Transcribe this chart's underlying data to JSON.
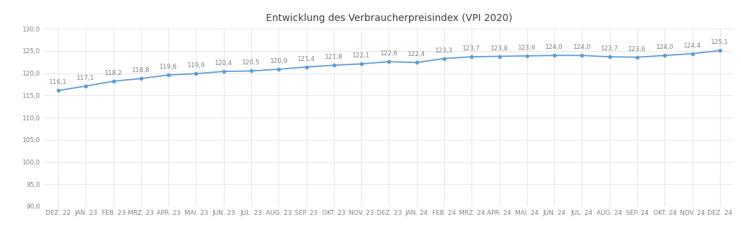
{
  "title": "Entwicklung des Verbraucherpreisindex (VPI 2020)",
  "labels": [
    "DEZ. 22",
    "JAN. 23",
    "FEB. 23",
    "MRZ. 23",
    "APR. 23",
    "MAI. 23",
    "JUN. 23",
    "JUL. 23",
    "AUG. 23",
    "SEP. 23",
    "OKT. 23",
    "NOV. 23",
    "DEZ. 23",
    "JAN. 24",
    "FEB. 24",
    "MRZ. 24",
    "APR. 24",
    "MAI. 24",
    "JUN. 24",
    "JUL. 24",
    "AUG. 24",
    "SEP. 24",
    "OKT. 24",
    "NOV. 24",
    "DEZ. 24"
  ],
  "values": [
    116.1,
    117.1,
    118.2,
    118.8,
    119.6,
    119.9,
    120.4,
    120.5,
    120.9,
    121.4,
    121.8,
    122.1,
    122.6,
    122.4,
    123.3,
    123.7,
    123.8,
    123.9,
    124.0,
    124.0,
    123.7,
    123.6,
    124.0,
    124.4,
    125.1
  ],
  "ylim": [
    90.0,
    130.0
  ],
  "yticks": [
    90.0,
    95.0,
    100.0,
    105.0,
    110.0,
    115.0,
    120.0,
    125.0,
    130.0
  ],
  "line_color": "#5B9BD5",
  "marker_color": "#5B9BD5",
  "label_color": "#808080",
  "grid_color": "#E0E0E0",
  "background_color": "#FFFFFF",
  "plot_background": "#FFFFFF",
  "title_fontsize": 10,
  "tick_fontsize": 6.5,
  "data_label_fontsize": 6.5
}
